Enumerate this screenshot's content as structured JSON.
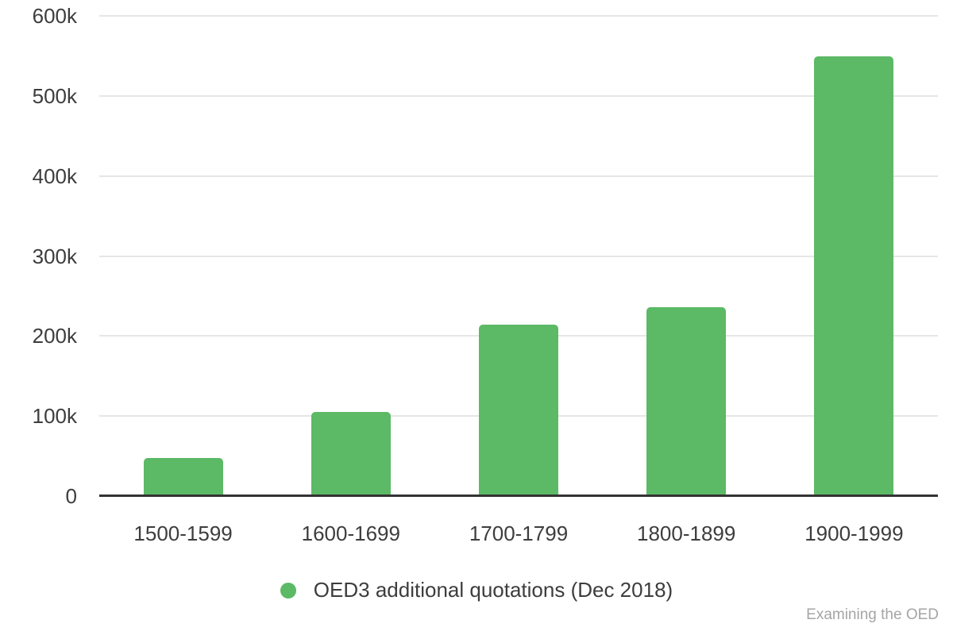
{
  "colors": {
    "bar": "#5cb966",
    "grid": "#e6e6e6",
    "axis": "#333333",
    "text": "#3d3d3d",
    "muted": "#a5a5a5"
  },
  "legend": {
    "label": "OED3 additional quotations (Dec 2018)"
  },
  "footer": {
    "text": "Examining the OED"
  },
  "chart_data": {
    "type": "bar",
    "title": "",
    "categories": [
      "1500-1599",
      "1600-1699",
      "1700-1799",
      "1800-1899",
      "1900-1999"
    ],
    "values": [
      48000,
      105000,
      214000,
      236000,
      549000
    ],
    "series": [
      {
        "name": "OED3 additional quotations (Dec 2018)",
        "values": [
          48000,
          105000,
          214000,
          236000,
          549000
        ]
      }
    ],
    "xlabel": "",
    "ylabel": "",
    "ylim": [
      0,
      600000
    ],
    "ytick_values": [
      0,
      100000,
      200000,
      300000,
      400000,
      500000,
      600000
    ],
    "ytick_labels": [
      "0",
      "100k",
      "200k",
      "300k",
      "400k",
      "500k",
      "600k"
    ],
    "grid": "horizontal",
    "legend_position": "bottom",
    "legend_entries": [
      "OED3 additional quotations (Dec 2018)"
    ],
    "bar_color_hex": "#5cb966",
    "annotations": [
      "Examining the OED"
    ]
  }
}
